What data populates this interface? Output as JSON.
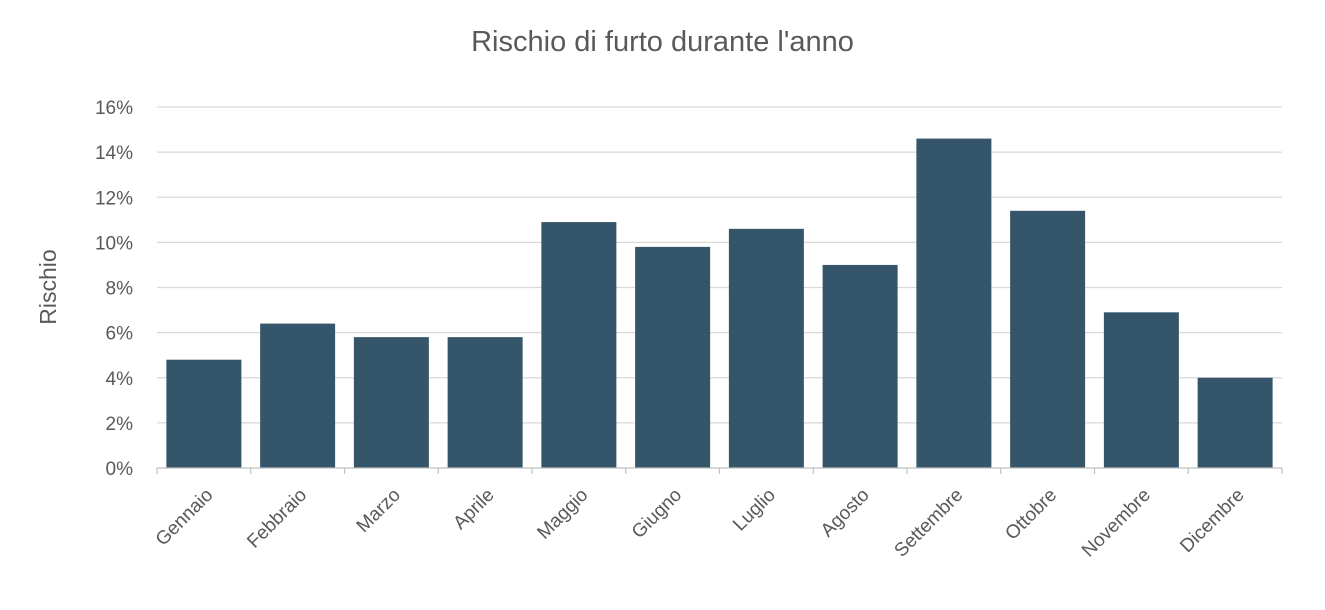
{
  "chart_data": {
    "type": "bar",
    "title": "Rischio di furto durante l'anno",
    "xlabel": "",
    "ylabel": "Rischio",
    "categories": [
      "Gennaio",
      "Febbraio",
      "Marzo",
      "Aprile",
      "Maggio",
      "Giugno",
      "Luglio",
      "Agosto",
      "Settembre",
      "Ottobre",
      "Novembre",
      "Dicembre"
    ],
    "values": [
      4.8,
      6.4,
      5.8,
      5.8,
      10.9,
      9.8,
      10.6,
      9.0,
      14.6,
      11.4,
      6.9,
      4.0
    ],
    "ylim": [
      0,
      16
    ],
    "yticks": [
      "0%",
      "2%",
      "4%",
      "6%",
      "8%",
      "10%",
      "12%",
      "14%",
      "16%"
    ],
    "grid": true,
    "legend": "none",
    "bar_color": "#34556a"
  }
}
